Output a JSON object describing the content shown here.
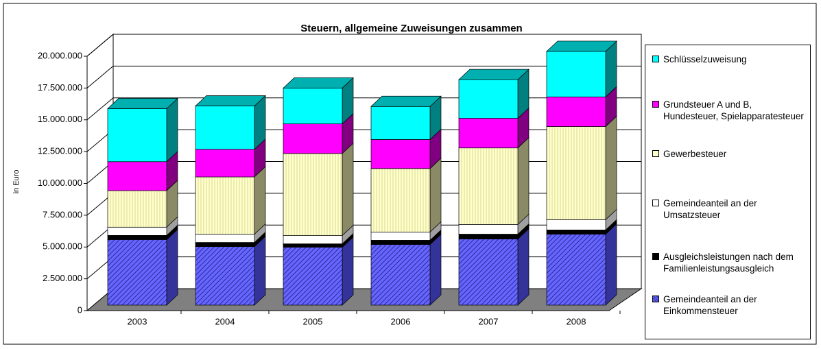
{
  "chart_data": {
    "type": "bar",
    "stacked": true,
    "three_d": true,
    "title": "Steuern, allgemeine Zuweisungen zusammen",
    "y_label": "in Euro",
    "categories": [
      "2003",
      "2004",
      "2005",
      "2006",
      "2007",
      "2008"
    ],
    "series": [
      {
        "name": "Gemeindeanteil an der Einkommensteuer",
        "color": "#6666ff",
        "side": "#333399",
        "pattern": "hatch",
        "values": [
          5150000,
          4600000,
          4550000,
          4770000,
          5200000,
          5580000
        ]
      },
      {
        "name": "Ausgleichsleistungen nach dem Familienleistungsausgleich",
        "color": "#000000",
        "side": "#000000",
        "values": [
          330000,
          330000,
          270000,
          330000,
          380000,
          330000
        ]
      },
      {
        "name": "Gemeindeanteil an der Umsatzsteuer",
        "color": "#ffffff",
        "side": "#a0a0a0",
        "values": [
          650000,
          650000,
          650000,
          650000,
          760000,
          810000
        ]
      },
      {
        "name": "Gewerbesteuer",
        "color": "#ffffcc",
        "side": "#8a8a66",
        "pattern": "stripes",
        "values": [
          2870000,
          4500000,
          6450000,
          4990000,
          6020000,
          7320000
        ]
      },
      {
        "name": "Grundsteuer A und B, Hundesteuer, Spielapparatesteuer",
        "color": "#ff00ff",
        "side": "#800080",
        "values": [
          2280000,
          2170000,
          2330000,
          2280000,
          2330000,
          2330000
        ]
      },
      {
        "name": "Schlüsselzuweisung",
        "color": "#00ffff",
        "side": "#008080",
        "values": [
          4170000,
          3410000,
          2820000,
          2600000,
          3040000,
          3580000
        ]
      }
    ],
    "ylim": [
      0,
      20000000
    ],
    "yticks": [
      0,
      {
        "value": 2500000,
        "label": "2.500.000"
      },
      {
        "value": 5000000,
        "label": "5.000.000"
      },
      {
        "value": 7500000,
        "label": "7.500.000"
      },
      {
        "value": 10000000,
        "label": "10.000.000"
      },
      {
        "value": 12500000,
        "label": "12.500.000"
      },
      {
        "value": 15000000,
        "label": "15.000.000"
      },
      {
        "value": 17500000,
        "label": "17.500.000"
      },
      {
        "value": 20000000,
        "label": "20.000.000"
      }
    ],
    "grid": true,
    "legend": "right"
  }
}
